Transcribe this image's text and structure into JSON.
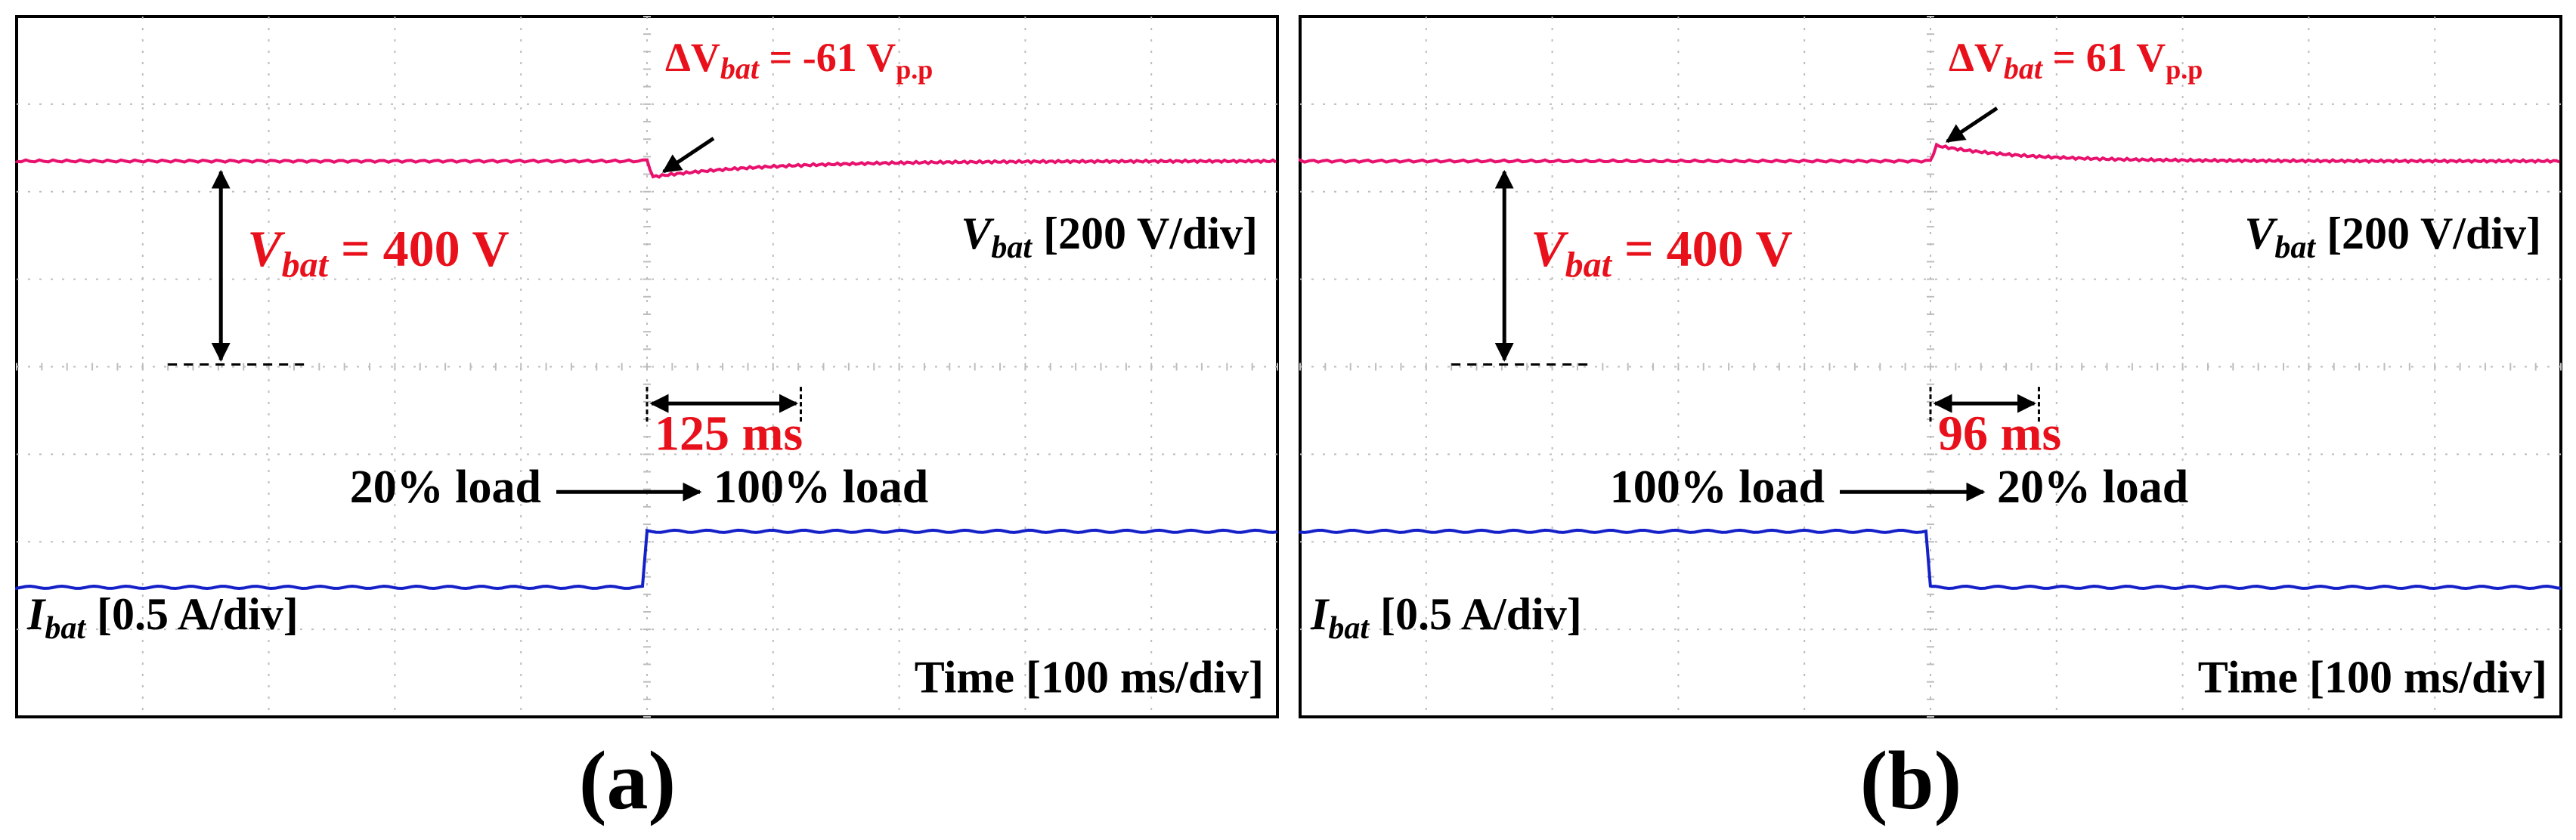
{
  "colors": {
    "voltage": "#e8116e",
    "current": "#1420c8",
    "annotation": "#e8111b",
    "text": "#000000",
    "grid": "#bdbdbd"
  },
  "chart_data": [
    {
      "type": "line",
      "panel_label": "(a)",
      "divisions": {
        "x": 10,
        "y": 8
      },
      "step_at_div": 5,
      "voltage": {
        "var": "V",
        "sub": "bat",
        "scale": " [200 V/div]",
        "annotation_var": "V",
        "annotation_sub": "bat",
        "annotation_value": " = 400 V",
        "delta_prefix": "ΔV",
        "delta_sub": "bat",
        "delta_value": " = -61 V",
        "delta_unit_sub": "p.p",
        "settling_time": "125 ms",
        "direction": "dip"
      },
      "current": {
        "var": "I",
        "sub": "bat",
        "scale": " [0.5 A/div]",
        "before_level": "low",
        "after_level": "high"
      },
      "load_before": "20% load",
      "load_after": "100% load",
      "time_scale": "Time [100 ms/div]"
    },
    {
      "type": "line",
      "panel_label": "(b)",
      "divisions": {
        "x": 10,
        "y": 8
      },
      "step_at_div": 5,
      "voltage": {
        "var": "V",
        "sub": "bat",
        "scale": " [200 V/div]",
        "annotation_var": "V",
        "annotation_sub": "bat",
        "annotation_value": " = 400 V",
        "delta_prefix": "ΔV",
        "delta_sub": "bat",
        "delta_value": " = 61 V",
        "delta_unit_sub": "p.p",
        "settling_time": "96 ms",
        "direction": "overshoot"
      },
      "current": {
        "var": "I",
        "sub": "bat",
        "scale": " [0.5 A/div]",
        "before_level": "high",
        "after_level": "low"
      },
      "load_before": "100% load",
      "load_after": "20% load",
      "time_scale": "Time [100 ms/div]"
    }
  ]
}
